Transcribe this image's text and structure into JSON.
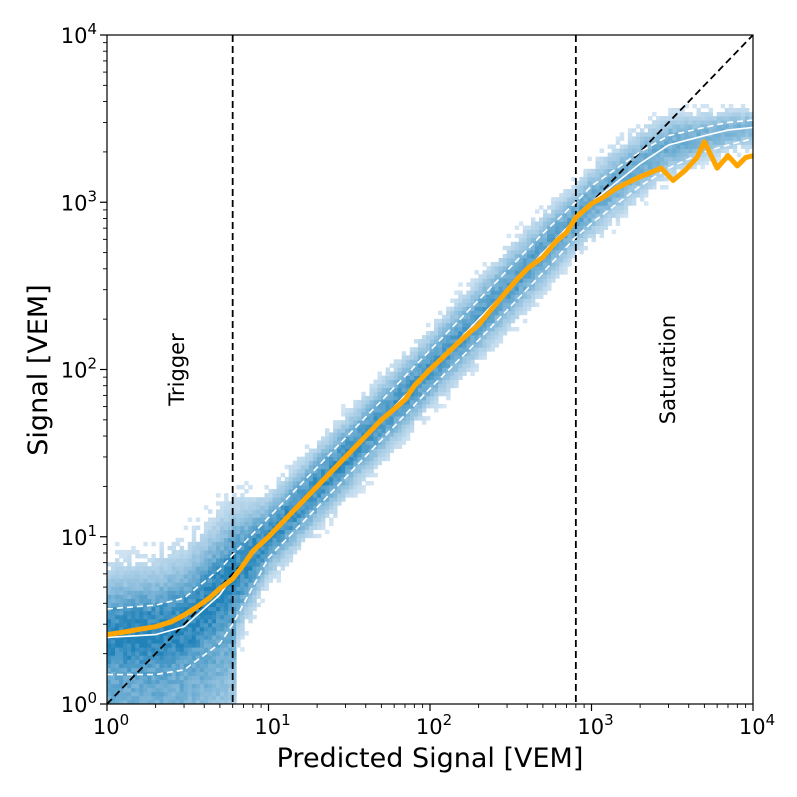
{
  "chart_data": {
    "type": "heatmap",
    "xlabel": "Predicted Signal [VEM]",
    "ylabel": "Signal [VEM]",
    "x_scale": "log",
    "y_scale": "log",
    "xlim": [
      1,
      10000
    ],
    "ylim": [
      1,
      10000
    ],
    "x_ticks": [
      {
        "value": 1,
        "base": "10",
        "exp": "0"
      },
      {
        "value": 10,
        "base": "10",
        "exp": "1"
      },
      {
        "value": 100,
        "base": "10",
        "exp": "2"
      },
      {
        "value": 1000,
        "base": "10",
        "exp": "3"
      },
      {
        "value": 10000,
        "base": "10",
        "exp": "4"
      }
    ],
    "y_ticks": [
      {
        "value": 1,
        "base": "10",
        "exp": "0"
      },
      {
        "value": 10,
        "base": "10",
        "exp": "1"
      },
      {
        "value": 100,
        "base": "10",
        "exp": "2"
      },
      {
        "value": 1000,
        "base": "10",
        "exp": "3"
      },
      {
        "value": 10000,
        "base": "10",
        "exp": "4"
      }
    ],
    "annotations": [
      {
        "text": "Trigger",
        "x": 3.0,
        "y": 100,
        "rotation": -90
      },
      {
        "text": "Saturation",
        "x": 3300,
        "y": 100,
        "rotation": -90
      }
    ],
    "reference_lines": {
      "diagonal": {
        "from": [
          1,
          1
        ],
        "to": [
          10000,
          10000
        ],
        "style": "dashed",
        "color": "#000000"
      },
      "vertical": [
        {
          "x": 6,
          "label": "trigger threshold",
          "style": "dashed"
        },
        {
          "x": 800,
          "label": "saturation threshold",
          "style": "dashed"
        }
      ]
    },
    "series": [
      {
        "name": "mean signal",
        "color": "#ffa500",
        "x": [
          1.0,
          1.3,
          1.6,
          2.0,
          2.5,
          3.0,
          3.6,
          4.3,
          5.0,
          6.0,
          7.0,
          8.0,
          10,
          13,
          16,
          20,
          25,
          30,
          40,
          50,
          60,
          70,
          80,
          100,
          120,
          150,
          180,
          200,
          250,
          300,
          350,
          400,
          500,
          600,
          700,
          800,
          1000,
          1200,
          1400,
          1700,
          2000,
          2300,
          2700,
          3200,
          3800,
          4500,
          5000,
          6000,
          7000,
          8000,
          9000,
          10000
        ],
        "values": [
          2.6,
          2.7,
          2.8,
          2.9,
          3.1,
          3.4,
          3.8,
          4.3,
          4.9,
          5.6,
          6.8,
          8.2,
          10.0,
          13.0,
          16.0,
          20.0,
          25.0,
          30.0,
          40.0,
          50.0,
          58.0,
          66.0,
          80.0,
          100.0,
          118.0,
          145.0,
          170.0,
          185.0,
          240.0,
          295.0,
          350.0,
          400.0,
          470.0,
          580.0,
          660.0,
          810.0,
          980.0,
          1080.0,
          1200.0,
          1320.0,
          1420.0,
          1500.0,
          1600.0,
          1350.0,
          1550.0,
          1850.0,
          2300.0,
          1600.0,
          1900.0,
          1650.0,
          1850.0,
          1900.0
        ]
      },
      {
        "name": "median",
        "color": "#ffffff",
        "x": [
          1,
          2,
          3,
          5,
          6,
          10,
          20,
          50,
          100,
          200,
          500,
          800,
          1000,
          2000,
          3000,
          5000,
          7000,
          10000
        ],
        "values": [
          2.5,
          2.6,
          2.9,
          4.5,
          5.8,
          10,
          20,
          50,
          100,
          200,
          500,
          800,
          1000,
          1700,
          2200,
          2500,
          2700,
          2800
        ]
      },
      {
        "name": "upper band",
        "color": "#ffffff",
        "x": [
          1,
          2,
          3,
          5,
          6,
          10,
          20,
          50,
          100,
          200,
          500,
          800,
          1000,
          2000,
          3000,
          5000,
          7000,
          10000
        ],
        "values": [
          3.7,
          3.9,
          4.3,
          6.4,
          7.8,
          13,
          26,
          65,
          130,
          260,
          650,
          1000,
          1250,
          2000,
          2500,
          2800,
          3000,
          3100
        ]
      },
      {
        "name": "lower band",
        "color": "#ffffff",
        "x": [
          1,
          2,
          3,
          5,
          6,
          10,
          20,
          50,
          100,
          200,
          500,
          800,
          1000,
          2000,
          3000,
          5000,
          7000,
          10000
        ],
        "values": [
          1.5,
          1.5,
          1.6,
          2.3,
          3.0,
          7.5,
          15,
          38,
          77,
          150,
          380,
          620,
          750,
          1250,
          1600,
          2000,
          2200,
          2400
        ]
      }
    ],
    "heatmap": {
      "colormap": "Blues",
      "description_values": "2D histogram of signal vs predicted signal, density concentrated along the median curve"
    }
  }
}
